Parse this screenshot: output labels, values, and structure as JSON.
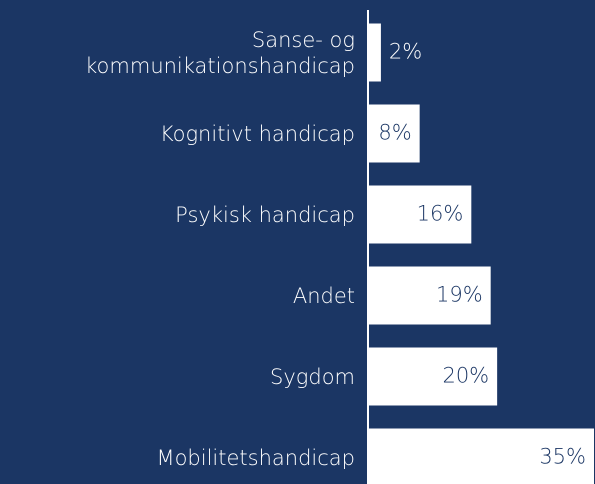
{
  "chart_data": {
    "type": "bar",
    "orientation": "horizontal",
    "categories": [
      "Sanse- og\nkommunikationshandicap",
      "Kognitivt handicap",
      "Psykisk handicap",
      "Andet",
      "Sygdom",
      "Mobilitetshandicap"
    ],
    "values": [
      2,
      8,
      16,
      19,
      20,
      35
    ],
    "value_labels": [
      "2%",
      "8%",
      "16%",
      "19%",
      "20%",
      "35%"
    ],
    "color": "#ffffff"
  }
}
